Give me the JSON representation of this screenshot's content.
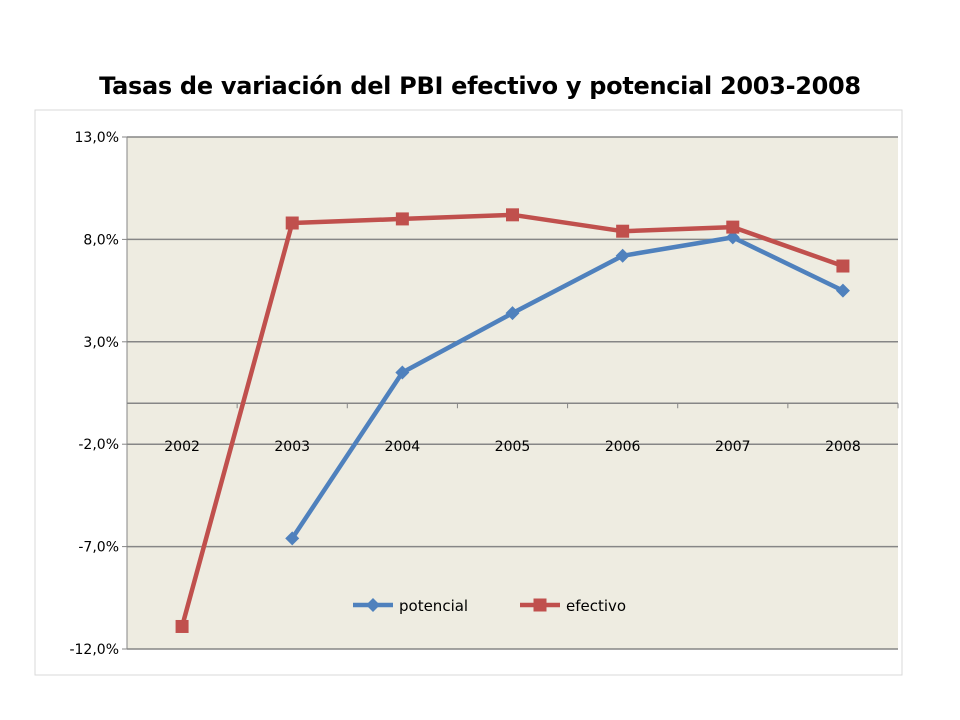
{
  "chart_data": {
    "type": "line",
    "title": "Tasas de variación del PBI efectivo y potencial 2003-2008",
    "categories": [
      "2002",
      "2003",
      "2004",
      "2005",
      "2006",
      "2007",
      "2008"
    ],
    "series": [
      {
        "name": "potencial",
        "color": "#4F81BD",
        "marker": "diamond",
        "values": [
          null,
          -6.6,
          1.5,
          4.4,
          7.2,
          8.1,
          5.5
        ]
      },
      {
        "name": "efectivo",
        "color": "#C0504D",
        "marker": "square",
        "values": [
          -10.9,
          8.8,
          9.0,
          9.2,
          8.4,
          8.6,
          6.7
        ]
      }
    ],
    "ylim": [
      -12,
      13
    ],
    "yticks": [
      13,
      8,
      3,
      -2,
      -7,
      -12
    ],
    "ytick_labels": [
      "13,0%",
      "8,0%",
      "3,0%",
      "-2,0%",
      "-7,0%",
      "-12,0%"
    ],
    "category_axis_at": 0,
    "grid": true,
    "legend_position": "bottom",
    "plot_background": "#EEECE1",
    "gridline_color": "#868686"
  }
}
